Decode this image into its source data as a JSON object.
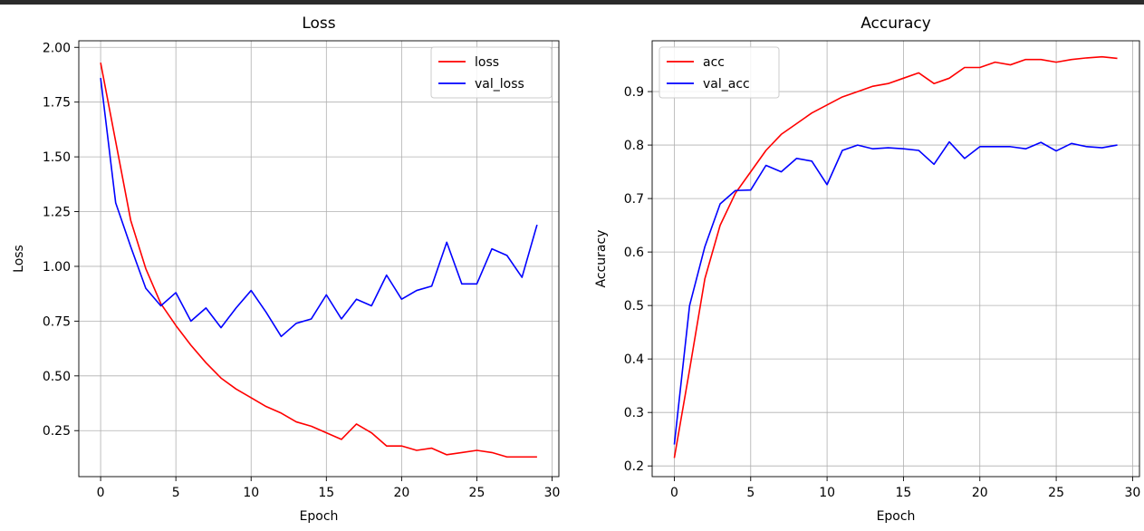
{
  "chart_data": [
    {
      "type": "line",
      "title": "Loss",
      "xlabel": "Epoch",
      "ylabel": "Loss",
      "xlim": [
        -1.45,
        30.45
      ],
      "ylim": [
        0.04,
        2.03
      ],
      "xticks": [
        0,
        5,
        10,
        15,
        20,
        25,
        30
      ],
      "yticks": [
        0.25,
        0.5,
        0.75,
        1.0,
        1.25,
        1.5,
        1.75,
        2.0
      ],
      "ytick_labels": [
        "0.25",
        "0.50",
        "0.75",
        "1.00",
        "1.25",
        "1.50",
        "1.75",
        "2.00"
      ],
      "grid": true,
      "legend": "top-right",
      "x": [
        0,
        1,
        2,
        3,
        4,
        5,
        6,
        7,
        8,
        9,
        10,
        11,
        12,
        13,
        14,
        15,
        16,
        17,
        18,
        19,
        20,
        21,
        22,
        23,
        24,
        25,
        26,
        27,
        28,
        29
      ],
      "series": [
        {
          "name": "loss",
          "color": "#ff0000",
          "values": [
            1.93,
            1.57,
            1.21,
            0.99,
            0.83,
            0.73,
            0.64,
            0.56,
            0.49,
            0.44,
            0.4,
            0.36,
            0.33,
            0.29,
            0.27,
            0.24,
            0.21,
            0.28,
            0.24,
            0.18,
            0.18,
            0.16,
            0.17,
            0.14,
            0.15,
            0.16,
            0.15,
            0.13,
            0.13,
            0.13
          ]
        },
        {
          "name": "val_loss",
          "color": "#0000ff",
          "values": [
            1.86,
            1.29,
            1.09,
            0.9,
            0.82,
            0.88,
            0.75,
            0.81,
            0.72,
            0.81,
            0.89,
            0.79,
            0.68,
            0.74,
            0.76,
            0.87,
            0.76,
            0.85,
            0.82,
            0.96,
            0.85,
            0.89,
            0.91,
            1.11,
            0.92,
            0.92,
            1.08,
            1.05,
            0.95,
            1.19
          ]
        }
      ]
    },
    {
      "type": "line",
      "title": "Accuracy",
      "xlabel": "Epoch",
      "ylabel": "Accuracy",
      "xlim": [
        -1.45,
        30.45
      ],
      "ylim": [
        0.18,
        0.995
      ],
      "xticks": [
        0,
        5,
        10,
        15,
        20,
        25,
        30
      ],
      "yticks": [
        0.2,
        0.3,
        0.4,
        0.5,
        0.6,
        0.7,
        0.8,
        0.9
      ],
      "ytick_labels": [
        "0.2",
        "0.3",
        "0.4",
        "0.5",
        "0.6",
        "0.7",
        "0.8",
        "0.9"
      ],
      "grid": true,
      "legend": "top-left",
      "x": [
        0,
        1,
        2,
        3,
        4,
        5,
        6,
        7,
        8,
        9,
        10,
        11,
        12,
        13,
        14,
        15,
        16,
        17,
        18,
        19,
        20,
        21,
        22,
        23,
        24,
        25,
        26,
        27,
        28,
        29
      ],
      "series": [
        {
          "name": "acc",
          "color": "#ff0000",
          "values": [
            0.215,
            0.38,
            0.55,
            0.65,
            0.71,
            0.75,
            0.79,
            0.82,
            0.84,
            0.86,
            0.875,
            0.89,
            0.9,
            0.91,
            0.915,
            0.925,
            0.935,
            0.915,
            0.925,
            0.945,
            0.945,
            0.955,
            0.95,
            0.96,
            0.96,
            0.955,
            0.96,
            0.963,
            0.965,
            0.962
          ]
        },
        {
          "name": "val_acc",
          "color": "#0000ff",
          "values": [
            0.24,
            0.5,
            0.61,
            0.69,
            0.715,
            0.716,
            0.762,
            0.75,
            0.775,
            0.77,
            0.726,
            0.79,
            0.8,
            0.793,
            0.795,
            0.793,
            0.79,
            0.764,
            0.806,
            0.775,
            0.797,
            0.797,
            0.797,
            0.793,
            0.805,
            0.789,
            0.803,
            0.797,
            0.795,
            0.8
          ]
        }
      ]
    }
  ]
}
